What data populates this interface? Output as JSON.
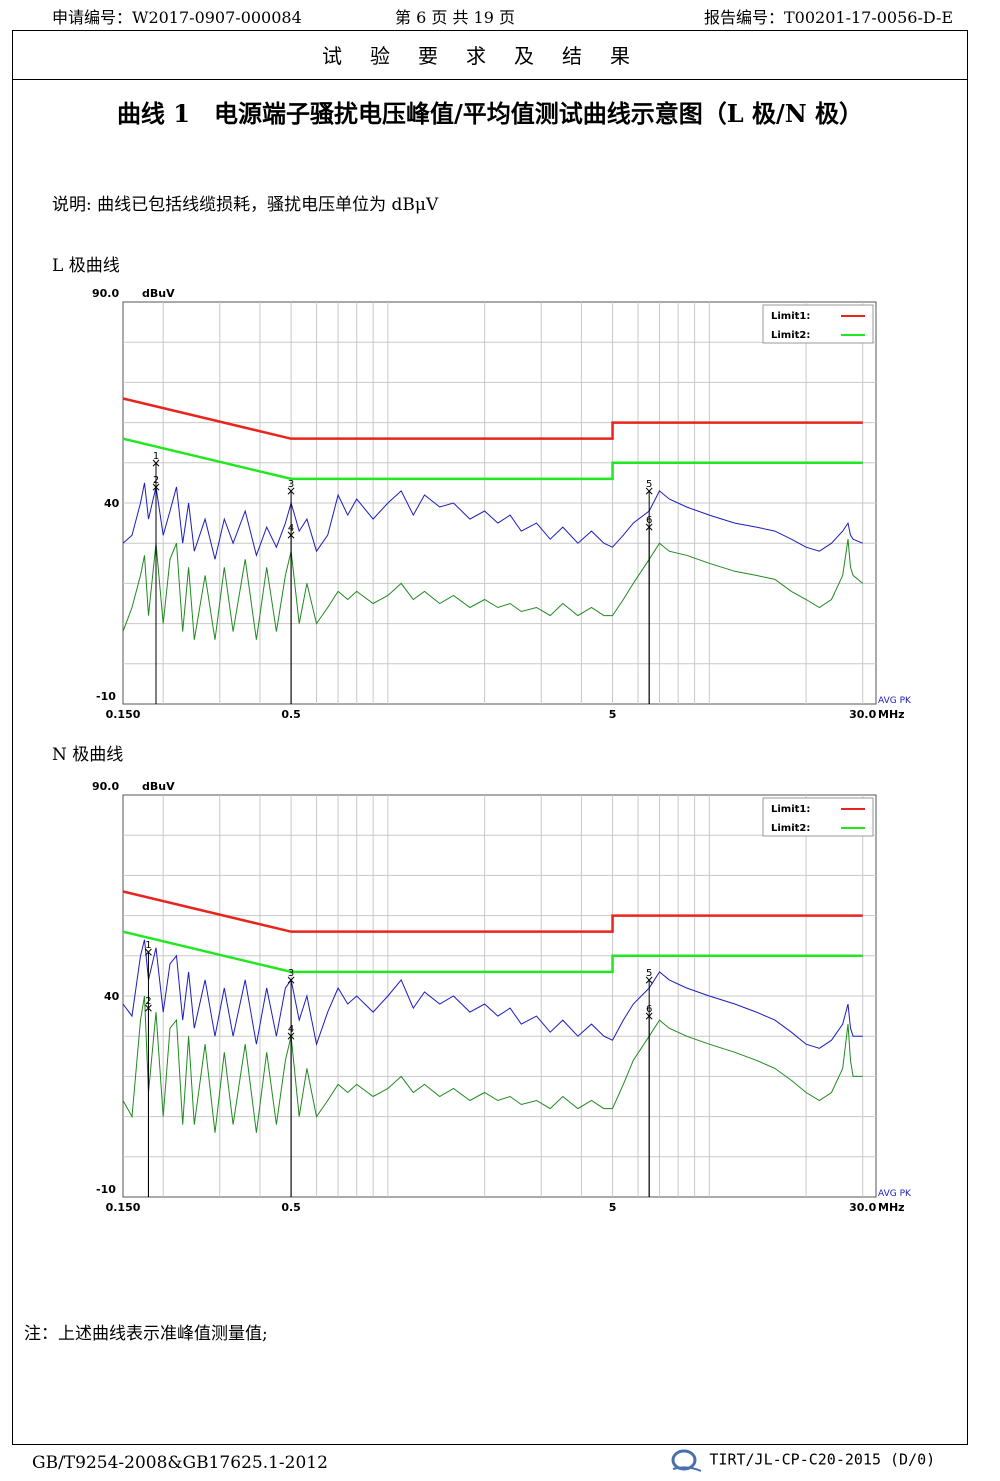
{
  "header": {
    "application_no": "申请编号：W2017-0907-000084",
    "page_info": "第 6 页 共 19 页",
    "report_no": "报告编号：T00201-17-0056-D-E"
  },
  "section_title": "试验要求及结果",
  "curve_title": "曲线 1　电源端子骚扰电压峰值/平均值测试曲线示意图（L 极/N 极）",
  "note_top": "说明: 曲线已包括线缆损耗，骚扰电压单位为 dBμV",
  "l_label": "L 极曲线",
  "n_label": "N 极曲线",
  "note_bottom": "注：上述曲线表示准峰值测量值;",
  "footer": {
    "standard": "GB/T9254-2008&GB17625.1-2012",
    "form": "TIRT/JL-CP-C20-2015 (D/0)"
  },
  "colors": {
    "limit1": "#e8251d",
    "limit2": "#1fe81f",
    "peak": "#1c1cbf",
    "avg": "#1f8a1f",
    "grid": "#c8c8c8"
  },
  "chart_data": [
    {
      "type": "line",
      "name": "L",
      "ylabel": "dBuV",
      "ymax_label": "90.0",
      "ymid_label": "40",
      "ymin_label": "-10",
      "ylim": [
        -10,
        90
      ],
      "xunit": "MHz",
      "xlim": [
        0.15,
        30
      ],
      "x_scale": "log",
      "xticks": [
        {
          "v": 0.15,
          "l": "0.150"
        },
        {
          "v": 0.5,
          "l": "0.5"
        },
        {
          "v": 5,
          "l": "5"
        },
        {
          "v": 30,
          "l": "30.0"
        }
      ],
      "corner_label": "AVG PK",
      "limits": [
        {
          "name": "Limit1:",
          "color": "limit1",
          "segments": [
            [
              0.15,
              66,
              0.5,
              56
            ],
            [
              0.5,
              56,
              5,
              56
            ],
            [
              5,
              60,
              30,
              60
            ]
          ]
        },
        {
          "name": "Limit2:",
          "color": "limit2",
          "segments": [
            [
              0.15,
              56,
              0.5,
              46
            ],
            [
              0.5,
              46,
              5,
              46
            ],
            [
              5,
              50,
              30,
              50
            ]
          ]
        }
      ],
      "peak_points": [
        [
          0.15,
          30
        ],
        [
          0.16,
          32
        ],
        [
          0.17,
          40
        ],
        [
          0.175,
          45
        ],
        [
          0.18,
          36
        ],
        [
          0.19,
          44
        ],
        [
          0.2,
          32
        ],
        [
          0.21,
          38
        ],
        [
          0.22,
          44
        ],
        [
          0.23,
          30
        ],
        [
          0.24,
          40
        ],
        [
          0.25,
          28
        ],
        [
          0.27,
          36
        ],
        [
          0.29,
          26
        ],
        [
          0.31,
          36
        ],
        [
          0.33,
          30
        ],
        [
          0.36,
          38
        ],
        [
          0.39,
          27
        ],
        [
          0.42,
          34
        ],
        [
          0.45,
          29
        ],
        [
          0.48,
          35
        ],
        [
          0.5,
          40
        ],
        [
          0.53,
          33
        ],
        [
          0.56,
          36
        ],
        [
          0.6,
          28
        ],
        [
          0.65,
          32
        ],
        [
          0.7,
          42
        ],
        [
          0.75,
          37
        ],
        [
          0.8,
          41
        ],
        [
          0.9,
          36
        ],
        [
          1.0,
          40
        ],
        [
          1.1,
          43
        ],
        [
          1.2,
          37
        ],
        [
          1.3,
          42
        ],
        [
          1.45,
          39
        ],
        [
          1.6,
          40
        ],
        [
          1.8,
          36
        ],
        [
          2.0,
          38
        ],
        [
          2.2,
          35
        ],
        [
          2.4,
          37
        ],
        [
          2.6,
          33
        ],
        [
          2.9,
          35
        ],
        [
          3.2,
          31
        ],
        [
          3.5,
          34
        ],
        [
          3.9,
          30
        ],
        [
          4.3,
          33
        ],
        [
          4.7,
          30
        ],
        [
          5.0,
          29
        ],
        [
          5.4,
          32
        ],
        [
          5.8,
          35
        ],
        [
          6.5,
          38
        ],
        [
          7.0,
          43
        ],
        [
          7.5,
          41
        ],
        [
          8.5,
          39
        ],
        [
          10,
          37
        ],
        [
          12,
          35
        ],
        [
          14,
          34
        ],
        [
          16,
          33
        ],
        [
          18,
          31
        ],
        [
          20,
          29
        ],
        [
          22,
          28
        ],
        [
          24,
          30
        ],
        [
          26,
          33
        ],
        [
          27,
          35
        ],
        [
          27.5,
          32
        ],
        [
          28,
          31
        ],
        [
          30,
          30
        ]
      ],
      "avg_points": [
        [
          0.15,
          8
        ],
        [
          0.16,
          14
        ],
        [
          0.17,
          22
        ],
        [
          0.175,
          27
        ],
        [
          0.18,
          12
        ],
        [
          0.19,
          30
        ],
        [
          0.2,
          10
        ],
        [
          0.21,
          26
        ],
        [
          0.22,
          30
        ],
        [
          0.23,
          8
        ],
        [
          0.24,
          24
        ],
        [
          0.25,
          6
        ],
        [
          0.27,
          22
        ],
        [
          0.29,
          6
        ],
        [
          0.31,
          24
        ],
        [
          0.33,
          8
        ],
        [
          0.36,
          26
        ],
        [
          0.39,
          6
        ],
        [
          0.42,
          24
        ],
        [
          0.45,
          8
        ],
        [
          0.48,
          22
        ],
        [
          0.5,
          28
        ],
        [
          0.53,
          10
        ],
        [
          0.56,
          20
        ],
        [
          0.6,
          10
        ],
        [
          0.65,
          14
        ],
        [
          0.7,
          18
        ],
        [
          0.75,
          16
        ],
        [
          0.8,
          18
        ],
        [
          0.9,
          15
        ],
        [
          1.0,
          17
        ],
        [
          1.1,
          20
        ],
        [
          1.2,
          16
        ],
        [
          1.3,
          18
        ],
        [
          1.45,
          15
        ],
        [
          1.6,
          17
        ],
        [
          1.8,
          14
        ],
        [
          2.0,
          16
        ],
        [
          2.2,
          14
        ],
        [
          2.4,
          15
        ],
        [
          2.6,
          13
        ],
        [
          2.9,
          14
        ],
        [
          3.2,
          12
        ],
        [
          3.5,
          15
        ],
        [
          3.9,
          12
        ],
        [
          4.3,
          14
        ],
        [
          4.7,
          12
        ],
        [
          5.0,
          12
        ],
        [
          5.4,
          16
        ],
        [
          5.8,
          20
        ],
        [
          6.5,
          26
        ],
        [
          7.0,
          30
        ],
        [
          7.5,
          28
        ],
        [
          8.5,
          27
        ],
        [
          10,
          25
        ],
        [
          12,
          23
        ],
        [
          14,
          22
        ],
        [
          16,
          21
        ],
        [
          18,
          18
        ],
        [
          20,
          16
        ],
        [
          22,
          14
        ],
        [
          24,
          16
        ],
        [
          26,
          22
        ],
        [
          27,
          31
        ],
        [
          27.5,
          24
        ],
        [
          28,
          22
        ],
        [
          30,
          20
        ]
      ],
      "markers": [
        {
          "label": "1",
          "x": 0.19,
          "y": 50
        },
        {
          "label": "2",
          "x": 0.19,
          "y": 44
        },
        {
          "label": "3",
          "x": 0.5,
          "y": 43
        },
        {
          "label": "4",
          "x": 0.5,
          "y": 32
        },
        {
          "label": "5",
          "x": 6.5,
          "y": 43
        },
        {
          "label": "6",
          "x": 6.5,
          "y": 34
        }
      ]
    },
    {
      "type": "line",
      "name": "N",
      "ylabel": "dBuV",
      "ymax_label": "90.0",
      "ymid_label": "40",
      "ymin_label": "-10",
      "ylim": [
        -10,
        90
      ],
      "xunit": "MHz",
      "xlim": [
        0.15,
        30
      ],
      "x_scale": "log",
      "xticks": [
        {
          "v": 0.15,
          "l": "0.150"
        },
        {
          "v": 0.5,
          "l": "0.5"
        },
        {
          "v": 5,
          "l": "5"
        },
        {
          "v": 30,
          "l": "30.0"
        }
      ],
      "corner_label": "AVG PK",
      "limits": [
        {
          "name": "Limit1:",
          "color": "limit1",
          "segments": [
            [
              0.15,
              66,
              0.5,
              56
            ],
            [
              0.5,
              56,
              5,
              56
            ],
            [
              5,
              60,
              30,
              60
            ]
          ]
        },
        {
          "name": "Limit2:",
          "color": "limit2",
          "segments": [
            [
              0.15,
              56,
              0.5,
              46
            ],
            [
              0.5,
              46,
              5,
              46
            ],
            [
              5,
              50,
              30,
              50
            ]
          ]
        }
      ],
      "peak_points": [
        [
          0.15,
          38
        ],
        [
          0.16,
          35
        ],
        [
          0.17,
          50
        ],
        [
          0.175,
          54
        ],
        [
          0.18,
          44
        ],
        [
          0.19,
          52
        ],
        [
          0.2,
          36
        ],
        [
          0.21,
          48
        ],
        [
          0.22,
          50
        ],
        [
          0.23,
          34
        ],
        [
          0.24,
          46
        ],
        [
          0.25,
          32
        ],
        [
          0.27,
          44
        ],
        [
          0.29,
          30
        ],
        [
          0.31,
          42
        ],
        [
          0.33,
          30
        ],
        [
          0.36,
          44
        ],
        [
          0.39,
          28
        ],
        [
          0.42,
          42
        ],
        [
          0.45,
          30
        ],
        [
          0.48,
          42
        ],
        [
          0.5,
          44
        ],
        [
          0.53,
          34
        ],
        [
          0.56,
          40
        ],
        [
          0.6,
          28
        ],
        [
          0.65,
          36
        ],
        [
          0.7,
          42
        ],
        [
          0.75,
          38
        ],
        [
          0.8,
          40
        ],
        [
          0.9,
          36
        ],
        [
          1.0,
          40
        ],
        [
          1.1,
          44
        ],
        [
          1.2,
          37
        ],
        [
          1.3,
          41
        ],
        [
          1.45,
          38
        ],
        [
          1.6,
          40
        ],
        [
          1.8,
          36
        ],
        [
          2.0,
          38
        ],
        [
          2.2,
          35
        ],
        [
          2.4,
          37
        ],
        [
          2.6,
          33
        ],
        [
          2.9,
          35
        ],
        [
          3.2,
          31
        ],
        [
          3.5,
          34
        ],
        [
          3.9,
          30
        ],
        [
          4.3,
          33
        ],
        [
          4.7,
          30
        ],
        [
          5.0,
          29
        ],
        [
          5.4,
          34
        ],
        [
          5.8,
          38
        ],
        [
          6.5,
          42
        ],
        [
          7.0,
          46
        ],
        [
          7.5,
          44
        ],
        [
          8.5,
          42
        ],
        [
          10,
          40
        ],
        [
          12,
          38
        ],
        [
          14,
          36
        ],
        [
          16,
          34
        ],
        [
          18,
          31
        ],
        [
          20,
          28
        ],
        [
          22,
          27
        ],
        [
          24,
          29
        ],
        [
          26,
          33
        ],
        [
          27,
          38
        ],
        [
          27.5,
          32
        ],
        [
          28,
          30
        ],
        [
          30,
          30
        ]
      ],
      "avg_points": [
        [
          0.15,
          14
        ],
        [
          0.16,
          10
        ],
        [
          0.17,
          34
        ],
        [
          0.175,
          40
        ],
        [
          0.18,
          16
        ],
        [
          0.19,
          36
        ],
        [
          0.2,
          10
        ],
        [
          0.21,
          32
        ],
        [
          0.22,
          34
        ],
        [
          0.23,
          8
        ],
        [
          0.24,
          30
        ],
        [
          0.25,
          8
        ],
        [
          0.27,
          28
        ],
        [
          0.29,
          6
        ],
        [
          0.31,
          26
        ],
        [
          0.33,
          8
        ],
        [
          0.36,
          28
        ],
        [
          0.39,
          6
        ],
        [
          0.42,
          26
        ],
        [
          0.45,
          8
        ],
        [
          0.48,
          24
        ],
        [
          0.5,
          30
        ],
        [
          0.53,
          10
        ],
        [
          0.56,
          22
        ],
        [
          0.6,
          10
        ],
        [
          0.65,
          14
        ],
        [
          0.7,
          18
        ],
        [
          0.75,
          16
        ],
        [
          0.8,
          18
        ],
        [
          0.9,
          15
        ],
        [
          1.0,
          17
        ],
        [
          1.1,
          20
        ],
        [
          1.2,
          16
        ],
        [
          1.3,
          18
        ],
        [
          1.45,
          15
        ],
        [
          1.6,
          17
        ],
        [
          1.8,
          14
        ],
        [
          2.0,
          16
        ],
        [
          2.2,
          14
        ],
        [
          2.4,
          15
        ],
        [
          2.6,
          13
        ],
        [
          2.9,
          14
        ],
        [
          3.2,
          12
        ],
        [
          3.5,
          15
        ],
        [
          3.9,
          12
        ],
        [
          4.3,
          14
        ],
        [
          4.7,
          12
        ],
        [
          5.0,
          12
        ],
        [
          5.4,
          18
        ],
        [
          5.8,
          24
        ],
        [
          6.5,
          30
        ],
        [
          7.0,
          34
        ],
        [
          7.5,
          32
        ],
        [
          8.5,
          30
        ],
        [
          10,
          28
        ],
        [
          12,
          26
        ],
        [
          14,
          24
        ],
        [
          16,
          22
        ],
        [
          18,
          19
        ],
        [
          20,
          16
        ],
        [
          22,
          14
        ],
        [
          24,
          16
        ],
        [
          26,
          22
        ],
        [
          27,
          33
        ],
        [
          27.5,
          24
        ],
        [
          28,
          20
        ],
        [
          30,
          20
        ]
      ],
      "markers": [
        {
          "label": "1",
          "x": 0.18,
          "y": 51
        },
        {
          "label": "2",
          "x": 0.18,
          "y": 37
        },
        {
          "label": "3",
          "x": 0.5,
          "y": 44
        },
        {
          "label": "4",
          "x": 0.5,
          "y": 30
        },
        {
          "label": "5",
          "x": 6.5,
          "y": 44
        },
        {
          "label": "6",
          "x": 6.5,
          "y": 35
        }
      ]
    }
  ]
}
